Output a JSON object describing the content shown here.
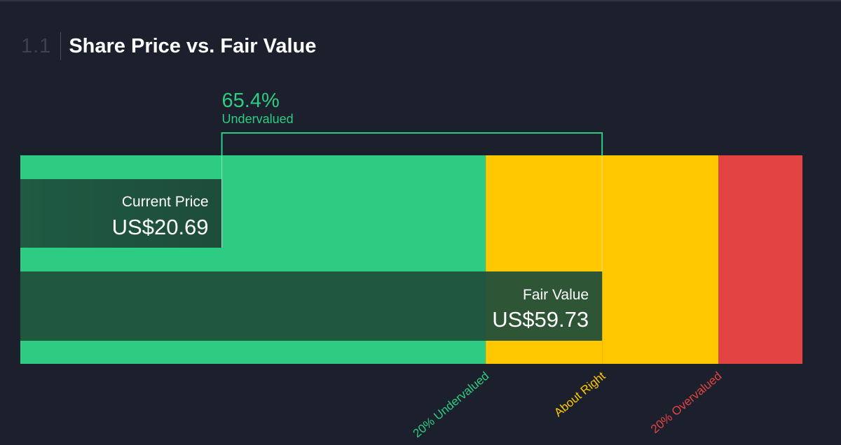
{
  "section": {
    "number": "1.1",
    "title": "Share Price vs. Fair Value"
  },
  "colors": {
    "background": "#1b202c",
    "undervalued": "#2ecc82",
    "about_right": "#ffc800",
    "overvalued": "#e44343",
    "bar_dark": "#1e4d3a"
  },
  "chart_data": {
    "type": "bar",
    "current_price": {
      "label": "Current Price",
      "value_text": "US$20.69",
      "value": 20.69
    },
    "fair_value": {
      "label": "Fair Value",
      "value_text": "US$59.73",
      "value": 59.73
    },
    "discount": {
      "percent_text": "65.4%",
      "label": "Undervalued",
      "percent": 65.4
    },
    "zones": [
      {
        "label": "20% Undervalued",
        "from": 0,
        "to": 47.784,
        "color": "#2ecc82",
        "label_color": "#2ecc82"
      },
      {
        "label": "About Right",
        "from": 47.784,
        "to": 59.73,
        "color": "#ffc800",
        "label_color": "#ffc800"
      },
      {
        "label": "20% Overvalued",
        "from": 59.73,
        "to": 71.676,
        "color": "#ffc800",
        "label_color": "#e44343"
      },
      {
        "label": "",
        "from": 71.676,
        "to": 80.3,
        "color": "#e44343",
        "label_color": "#e44343"
      }
    ],
    "xlim": [
      0,
      80.3
    ]
  }
}
